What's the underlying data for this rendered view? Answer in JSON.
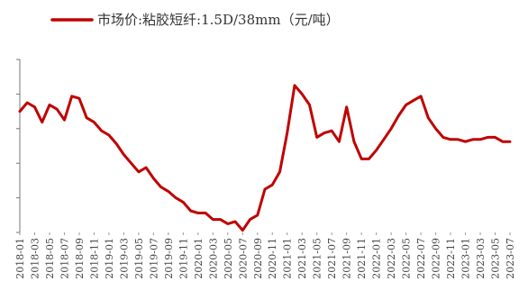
{
  "chart_data": {
    "type": "line",
    "series": [
      {
        "name": "市场价:粘胶短纤:1.5D/38mm（元/吨）",
        "color": "#c00000",
        "x": [
          "2018-01",
          "2018-02",
          "2018-03",
          "2018-04",
          "2018-05",
          "2018-06",
          "2018-07",
          "2018-08",
          "2018-09",
          "2018-10",
          "2018-11",
          "2018-12",
          "2019-01",
          "2019-02",
          "2019-03",
          "2019-04",
          "2019-05",
          "2019-06",
          "2019-07",
          "2019-08",
          "2019-09",
          "2019-10",
          "2019-11",
          "2019-12",
          "2020-01",
          "2020-02",
          "2020-03",
          "2020-04",
          "2020-05",
          "2020-06",
          "2020-07",
          "2020-08",
          "2020-09",
          "2020-10",
          "2020-11",
          "2020-12",
          "2021-01",
          "2021-02",
          "2021-03",
          "2021-04",
          "2021-05",
          "2021-06",
          "2021-07",
          "2021-08",
          "2021-09",
          "2021-10",
          "2021-11",
          "2021-12",
          "2022-01",
          "2022-02",
          "2022-03",
          "2022-04",
          "2022-05",
          "2022-06",
          "2022-07",
          "2022-08",
          "2022-09",
          "2022-10",
          "2022-11",
          "2022-12",
          "2023-01",
          "2023-02",
          "2023-03",
          "2023-04",
          "2023-05",
          "2023-06",
          "2023-07"
        ],
        "values": [
          14600,
          15000,
          14800,
          14100,
          14900,
          14700,
          14200,
          15300,
          15200,
          14300,
          14100,
          13700,
          13500,
          13100,
          12600,
          12200,
          11800,
          12000,
          11500,
          11100,
          10900,
          10600,
          10400,
          10000,
          9900,
          9900,
          9600,
          9600,
          9400,
          9500,
          9100,
          9600,
          9800,
          11000,
          11200,
          11800,
          13600,
          15800,
          15400,
          14900,
          13400,
          13600,
          13700,
          13200,
          14800,
          13200,
          12400,
          12400,
          12800,
          13300,
          13800,
          14400,
          14900,
          15100,
          15300,
          14300,
          13800,
          13400,
          13300,
          13300,
          13200,
          13300,
          13300,
          13400,
          13400,
          13200,
          13200
        ]
      }
    ],
    "x_tick_labels": [
      "2018-01",
      "2018-03",
      "2018-05",
      "2018-07",
      "2018-09",
      "2018-11",
      "2019-01",
      "2019-03",
      "2019-05",
      "2019-07",
      "2019-09",
      "2019-11",
      "2020-01",
      "2020-03",
      "2020-05",
      "2020-07",
      "2020-09",
      "2020-11",
      "2021-01",
      "2021-03",
      "2021-05",
      "2021-07",
      "2021-09",
      "2021-11",
      "2022-01",
      "2022-03",
      "2022-05",
      "2022-07",
      "2022-09",
      "2022-11",
      "2023-01",
      "2023-03",
      "2023-05",
      "2023-07"
    ],
    "legend_placement": "top",
    "grid": false,
    "ylim": [
      9000,
      17000
    ]
  }
}
